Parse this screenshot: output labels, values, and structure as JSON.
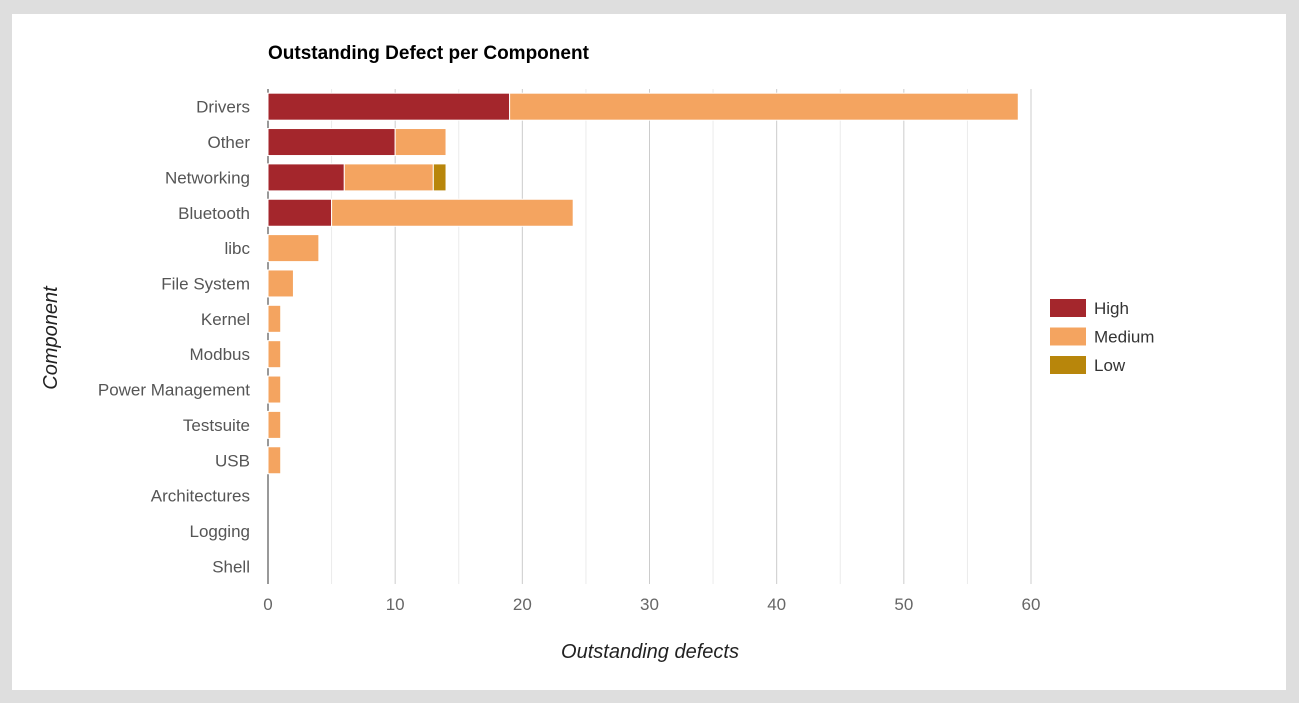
{
  "chart_data": {
    "type": "bar",
    "orientation": "horizontal",
    "stacked": true,
    "title": "Outstanding Defect per Component",
    "xlabel": "Outstanding defects",
    "ylabel": "Component",
    "xlim": [
      0,
      60
    ],
    "xticks": [
      0,
      10,
      20,
      30,
      40,
      50,
      60
    ],
    "grid": true,
    "legend_position": "right",
    "categories": [
      "Drivers",
      "Other",
      "Networking",
      "Bluetooth",
      "libc",
      "File System",
      "Kernel",
      "Modbus",
      "Power Management",
      "Testsuite",
      "USB",
      "Architectures",
      "Logging",
      "Shell"
    ],
    "series": [
      {
        "name": "High",
        "color": "#a4262c",
        "values": [
          19,
          10,
          6,
          5,
          0,
          0,
          0,
          0,
          0,
          0,
          0,
          0,
          0,
          0
        ]
      },
      {
        "name": "Medium",
        "color": "#f4a460",
        "values": [
          40,
          4,
          7,
          19,
          4,
          2,
          1,
          1,
          1,
          1,
          1,
          0,
          0,
          0
        ]
      },
      {
        "name": "Low",
        "color": "#b8860b",
        "values": [
          0,
          0,
          1,
          0,
          0,
          0,
          0,
          0,
          0,
          0,
          0,
          0,
          0,
          0
        ]
      }
    ]
  }
}
